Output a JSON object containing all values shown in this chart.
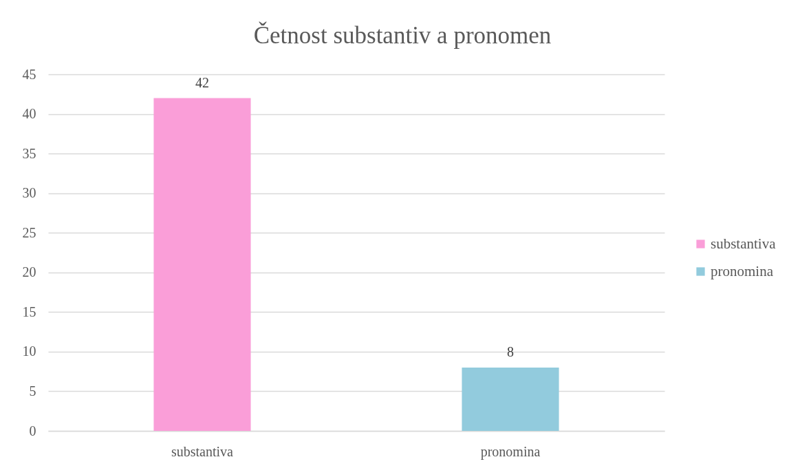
{
  "chart_data": {
    "type": "bar",
    "title": "Četnost substantiv a pronomen",
    "categories": [
      "substantiva",
      "pronomina"
    ],
    "stacked": true,
    "series": [
      {
        "name": "substantiva",
        "color": "#fa9ed8",
        "values": [
          42,
          null
        ]
      },
      {
        "name": "pronomina",
        "color": "#92cbdd",
        "values": [
          null,
          8
        ]
      }
    ],
    "ylim": [
      0,
      45
    ],
    "yticks": [
      0,
      5,
      10,
      15,
      20,
      25,
      30,
      35,
      40,
      45
    ],
    "grid": "y",
    "legend": "right",
    "data_labels": true
  }
}
